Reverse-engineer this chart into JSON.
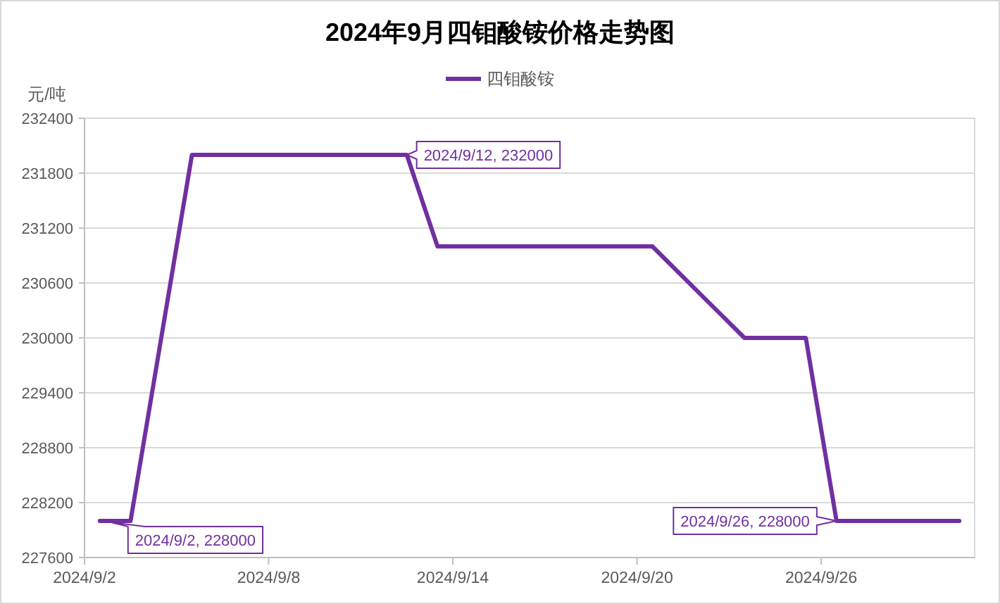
{
  "chart_data": {
    "type": "line",
    "title": "2024年9月四钼酸铵价格走势图",
    "ylabel": "元/吨",
    "x": [
      "2024-09-02T12:00",
      "2024-09-03T12:00",
      "2024-09-05T12:00",
      "2024-09-12T12:00",
      "2024-09-13T12:00",
      "2024-09-20T12:00",
      "2024-09-23T12:00",
      "2024-09-25T12:00",
      "2024-09-26T12:00",
      "2024-09-30T12:00"
    ],
    "series": [
      {
        "name": "四钼酸铵",
        "color": "#7030a0",
        "values": [
          228000,
          228000,
          232000,
          232000,
          231000,
          231000,
          230000,
          230000,
          228000,
          228000
        ]
      }
    ],
    "xlim": [
      "2024-09-02",
      "2024-10-01"
    ],
    "xticks": [
      {
        "value": "2024-09-02",
        "label": "2024/9/2"
      },
      {
        "value": "2024-09-08",
        "label": "2024/9/8"
      },
      {
        "value": "2024-09-14",
        "label": "2024/9/14"
      },
      {
        "value": "2024-09-20",
        "label": "2024/9/20"
      },
      {
        "value": "2024-09-26",
        "label": "2024/9/26"
      }
    ],
    "ylim": [
      227600,
      232400
    ],
    "yticks": [
      227600,
      228200,
      228800,
      229400,
      230000,
      230600,
      231200,
      231800,
      232400
    ],
    "grid": "y",
    "legend": "top",
    "annotations": [
      {
        "text": "2024/9/2, 228000",
        "x": "2024-09-02T12:00",
        "y": 228000
      },
      {
        "text": "2024/9/12, 232000",
        "x": "2024-09-12T12:00",
        "y": 232000
      },
      {
        "text": "2024/9/26, 228000",
        "x": "2024-09-26T12:00",
        "y": 228000
      }
    ]
  }
}
